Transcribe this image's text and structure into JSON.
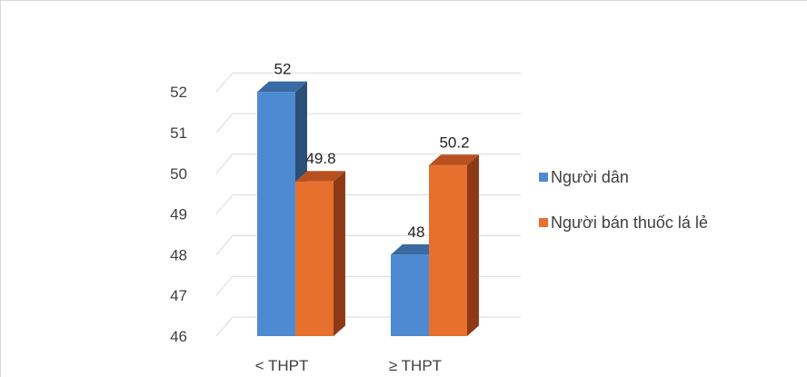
{
  "chart_data": {
    "type": "bar",
    "style": "3d-clustered-column",
    "categories": [
      "< THPT",
      "≥ THPT"
    ],
    "series": [
      {
        "name": "Người dân",
        "values": [
          52,
          48
        ],
        "color": "#4e8ad1",
        "side_color": "#2c4f78",
        "top_color": "#3a6aa3"
      },
      {
        "name": "Người bán thuốc lá lẻ",
        "values": [
          49.8,
          50.2
        ],
        "color": "#e8702f",
        "side_color": "#8c3a16",
        "top_color": "#b8511f"
      }
    ],
    "data_labels": [
      [
        "52",
        "48"
      ],
      [
        "49.8",
        "50.2"
      ]
    ],
    "y_ticks": [
      "46",
      "47",
      "48",
      "49",
      "50",
      "51",
      "52"
    ],
    "ylim": [
      46,
      52
    ],
    "title": "",
    "xlabel": "",
    "ylabel": "",
    "grid": true,
    "legend": "right"
  }
}
